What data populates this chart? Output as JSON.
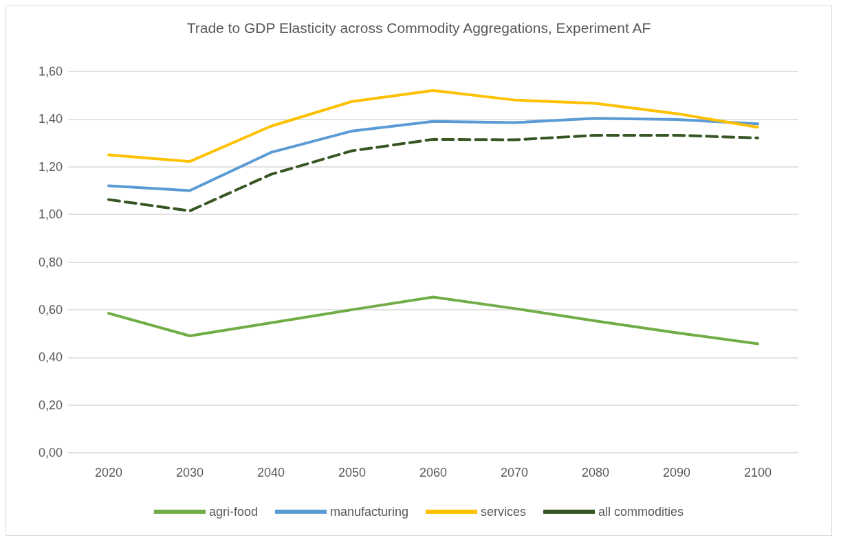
{
  "chart_data": {
    "type": "line",
    "title": "Trade to GDP Elasticity across Commodity Aggregations, Experiment AF",
    "categories": [
      "2020",
      "2030",
      "2040",
      "2050",
      "2060",
      "2070",
      "2080",
      "2090",
      "2100"
    ],
    "series": [
      {
        "name": "agri-food",
        "color": "#70ad47",
        "line_style": "solid",
        "values": [
          0.585,
          0.49,
          0.545,
          0.6,
          0.653,
          0.605,
          0.553,
          0.503,
          0.457
        ]
      },
      {
        "name": "manufacturing",
        "color": "#5b9bd5",
        "line_style": "solid",
        "values": [
          1.12,
          1.1,
          1.26,
          1.35,
          1.39,
          1.385,
          1.403,
          1.398,
          1.38
        ]
      },
      {
        "name": "services",
        "color": "#ffc000",
        "line_style": "solid",
        "values": [
          1.25,
          1.222,
          1.37,
          1.474,
          1.52,
          1.48,
          1.466,
          1.423,
          1.366
        ]
      },
      {
        "name": "all commodities",
        "color": "#375623",
        "line_style": "dashed",
        "values": [
          1.062,
          1.015,
          1.168,
          1.267,
          1.315,
          1.313,
          1.332,
          1.332,
          1.321
        ]
      }
    ],
    "ylim": [
      0,
      1.6
    ],
    "yticks": [
      {
        "value": 0,
        "label": "0,00"
      },
      {
        "value": 0.2,
        "label": "0,20"
      },
      {
        "value": 0.4,
        "label": "0,40"
      },
      {
        "value": 0.6,
        "label": "0,60"
      },
      {
        "value": 0.8,
        "label": "0,80"
      },
      {
        "value": 1,
        "label": "1,00"
      },
      {
        "value": 1.2,
        "label": "1,20"
      },
      {
        "value": 1.4,
        "label": "1,40"
      },
      {
        "value": 1.6,
        "label": "1,60"
      }
    ],
    "grid": "y",
    "legend": "bottom",
    "marker": "none"
  }
}
